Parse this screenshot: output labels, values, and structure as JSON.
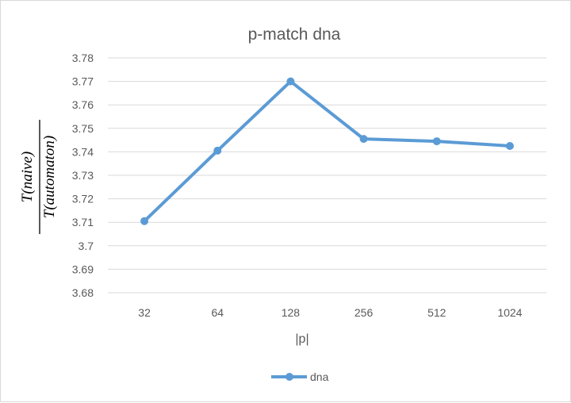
{
  "chart_data": {
    "type": "line",
    "title": "p-match dna",
    "xlabel": "|p|",
    "ylabel_numerator": "T(naive)",
    "ylabel_denominator": "T(automaton)",
    "categories": [
      "32",
      "64",
      "128",
      "256",
      "512",
      "1024"
    ],
    "series": [
      {
        "name": "dna",
        "values": [
          3.7105,
          3.7405,
          3.77,
          3.7455,
          3.7445,
          3.7425
        ]
      }
    ],
    "ylim": [
      3.68,
      3.78
    ],
    "yticks": [
      "3.68",
      "3.69",
      "3.7",
      "3.71",
      "3.72",
      "3.73",
      "3.74",
      "3.75",
      "3.76",
      "3.77",
      "3.78"
    ],
    "grid": true,
    "legend_position": "bottom",
    "colors": {
      "series": "#5b9bd5",
      "grid": "#d9d9d9",
      "text": "#595959"
    }
  }
}
